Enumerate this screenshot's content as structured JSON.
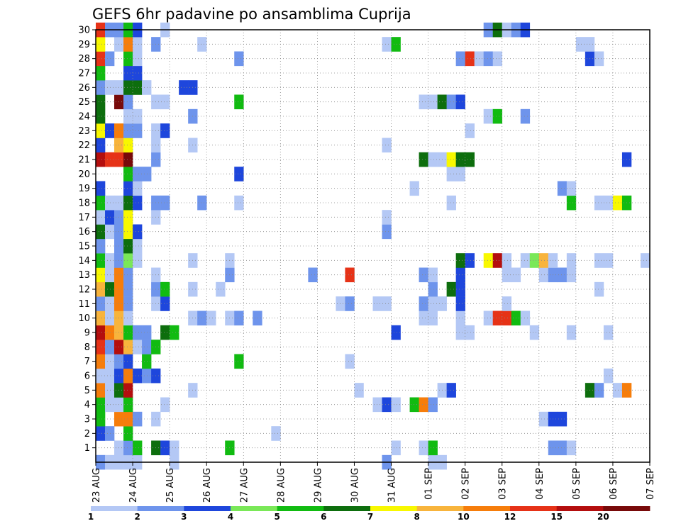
{
  "chart_data": {
    "type": "heatmap",
    "title": "GEFS 6hr padavine po ansamblima Cuprija",
    "xlabel": "",
    "ylabel": "",
    "x_ticks": [
      "23 AUG",
      "24 AUG",
      "25 AUG",
      "26 AUG",
      "27 AUG",
      "28 AUG",
      "29 AUG",
      "30 AUG",
      "31 AUG",
      "01 SEP",
      "02 SEP",
      "03 SEP",
      "04 SEP",
      "05 SEP",
      "06 SEP",
      "07 SEP"
    ],
    "x_range": [
      0,
      60
    ],
    "x_unit": "6-hour steps from 23 AUG 00Z",
    "y_range": [
      0,
      30
    ],
    "y_ticks": [
      1,
      2,
      3,
      4,
      5,
      6,
      7,
      8,
      9,
      10,
      11,
      12,
      13,
      14,
      15,
      16,
      17,
      18,
      19,
      20,
      21,
      22,
      23,
      24,
      25,
      26,
      27,
      28,
      29,
      30
    ],
    "grid": true,
    "legend": "bottom",
    "colorbar": {
      "labels": [
        "1",
        "2",
        "3",
        "4",
        "5",
        "6",
        "7",
        "8",
        "10",
        "12",
        "15",
        "20"
      ],
      "colors": [
        "#b4c8f5",
        "#6e94ec",
        "#1e46dc",
        "#7ae858",
        "#11bb11",
        "#0d6e0d",
        "#f8f800",
        "#f8b43c",
        "#f67d0b",
        "#e63217",
        "#b40e0e",
        "#780a0a"
      ]
    },
    "cells": [
      [
        0,
        0,
        2
      ],
      [
        1,
        0,
        1
      ],
      [
        2,
        0,
        1
      ],
      [
        3,
        0,
        1
      ],
      [
        4,
        0,
        1
      ],
      [
        8,
        0,
        1
      ],
      [
        31,
        0,
        2
      ],
      [
        36,
        0,
        1
      ],
      [
        37,
        0,
        1
      ],
      [
        2,
        1,
        1
      ],
      [
        3,
        1,
        2
      ],
      [
        4,
        1,
        5
      ],
      [
        6,
        1,
        6
      ],
      [
        7,
        1,
        3
      ],
      [
        8,
        1,
        1
      ],
      [
        14,
        1,
        5
      ],
      [
        32,
        1,
        1
      ],
      [
        35,
        1,
        1
      ],
      [
        36,
        1,
        5
      ],
      [
        49,
        1,
        2
      ],
      [
        50,
        1,
        2
      ],
      [
        51,
        1,
        1
      ],
      [
        0,
        2,
        3
      ],
      [
        1,
        2,
        2
      ],
      [
        3,
        2,
        5
      ],
      [
        19,
        2,
        1
      ],
      [
        0,
        3,
        5
      ],
      [
        2,
        3,
        9
      ],
      [
        3,
        3,
        9
      ],
      [
        4,
        3,
        2
      ],
      [
        6,
        3,
        1
      ],
      [
        48,
        3,
        1
      ],
      [
        49,
        3,
        3
      ],
      [
        50,
        3,
        3
      ],
      [
        0,
        4,
        5
      ],
      [
        1,
        4,
        1
      ],
      [
        2,
        4,
        1
      ],
      [
        3,
        4,
        5
      ],
      [
        7,
        4,
        1
      ],
      [
        30,
        4,
        1
      ],
      [
        31,
        4,
        3
      ],
      [
        32,
        4,
        1
      ],
      [
        34,
        4,
        5
      ],
      [
        35,
        4,
        9
      ],
      [
        36,
        4,
        2
      ],
      [
        0,
        5,
        9
      ],
      [
        1,
        5,
        1
      ],
      [
        2,
        5,
        6
      ],
      [
        3,
        5,
        11
      ],
      [
        10,
        5,
        1
      ],
      [
        28,
        5,
        1
      ],
      [
        37,
        5,
        1
      ],
      [
        38,
        5,
        3
      ],
      [
        53,
        5,
        6
      ],
      [
        54,
        5,
        2
      ],
      [
        56,
        5,
        1
      ],
      [
        57,
        5,
        9
      ],
      [
        0,
        6,
        1
      ],
      [
        1,
        6,
        1
      ],
      [
        2,
        6,
        3
      ],
      [
        3,
        6,
        9
      ],
      [
        4,
        6,
        3
      ],
      [
        5,
        6,
        2
      ],
      [
        6,
        6,
        3
      ],
      [
        55,
        6,
        1
      ],
      [
        0,
        7,
        9
      ],
      [
        1,
        7,
        1
      ],
      [
        2,
        7,
        2
      ],
      [
        3,
        7,
        3
      ],
      [
        5,
        7,
        5
      ],
      [
        15,
        7,
        5
      ],
      [
        27,
        7,
        1
      ],
      [
        0,
        8,
        10
      ],
      [
        1,
        8,
        2
      ],
      [
        2,
        8,
        11
      ],
      [
        3,
        8,
        8
      ],
      [
        4,
        8,
        1
      ],
      [
        5,
        8,
        2
      ],
      [
        6,
        8,
        5
      ],
      [
        0,
        9,
        11
      ],
      [
        1,
        9,
        9
      ],
      [
        2,
        9,
        8
      ],
      [
        3,
        9,
        5
      ],
      [
        4,
        9,
        2
      ],
      [
        5,
        9,
        2
      ],
      [
        7,
        9,
        6
      ],
      [
        8,
        9,
        5
      ],
      [
        32,
        9,
        3
      ],
      [
        39,
        9,
        1
      ],
      [
        40,
        9,
        1
      ],
      [
        47,
        9,
        1
      ],
      [
        51,
        9,
        1
      ],
      [
        55,
        9,
        1
      ],
      [
        0,
        10,
        8
      ],
      [
        1,
        10,
        1
      ],
      [
        2,
        10,
        8
      ],
      [
        3,
        10,
        1
      ],
      [
        10,
        10,
        1
      ],
      [
        11,
        10,
        2
      ],
      [
        12,
        10,
        1
      ],
      [
        14,
        10,
        1
      ],
      [
        15,
        10,
        2
      ],
      [
        17,
        10,
        2
      ],
      [
        35,
        10,
        1
      ],
      [
        36,
        10,
        1
      ],
      [
        39,
        10,
        1
      ],
      [
        42,
        10,
        1
      ],
      [
        43,
        10,
        10
      ],
      [
        44,
        10,
        10
      ],
      [
        45,
        10,
        5
      ],
      [
        46,
        10,
        1
      ],
      [
        0,
        11,
        2
      ],
      [
        1,
        11,
        1
      ],
      [
        2,
        11,
        9
      ],
      [
        3,
        11,
        2
      ],
      [
        6,
        11,
        1
      ],
      [
        7,
        11,
        3
      ],
      [
        26,
        11,
        1
      ],
      [
        27,
        11,
        2
      ],
      [
        30,
        11,
        1
      ],
      [
        31,
        11,
        1
      ],
      [
        35,
        11,
        2
      ],
      [
        36,
        11,
        1
      ],
      [
        37,
        11,
        1
      ],
      [
        39,
        11,
        3
      ],
      [
        44,
        11,
        1
      ],
      [
        0,
        12,
        8
      ],
      [
        1,
        12,
        6
      ],
      [
        2,
        12,
        9
      ],
      [
        3,
        12,
        2
      ],
      [
        6,
        12,
        2
      ],
      [
        7,
        12,
        5
      ],
      [
        10,
        12,
        1
      ],
      [
        13,
        12,
        1
      ],
      [
        36,
        12,
        2
      ],
      [
        38,
        12,
        6
      ],
      [
        39,
        12,
        3
      ],
      [
        54,
        12,
        1
      ],
      [
        0,
        13,
        7
      ],
      [
        1,
        13,
        1
      ],
      [
        2,
        13,
        9
      ],
      [
        3,
        13,
        2
      ],
      [
        6,
        13,
        1
      ],
      [
        14,
        13,
        2
      ],
      [
        23,
        13,
        2
      ],
      [
        27,
        13,
        10
      ],
      [
        35,
        13,
        2
      ],
      [
        36,
        13,
        1
      ],
      [
        39,
        13,
        3
      ],
      [
        44,
        13,
        1
      ],
      [
        45,
        13,
        1
      ],
      [
        48,
        13,
        1
      ],
      [
        49,
        13,
        2
      ],
      [
        50,
        13,
        2
      ],
      [
        51,
        13,
        1
      ],
      [
        0,
        14,
        5
      ],
      [
        1,
        14,
        1
      ],
      [
        2,
        14,
        2
      ],
      [
        3,
        14,
        4
      ],
      [
        4,
        14,
        1
      ],
      [
        10,
        14,
        1
      ],
      [
        14,
        14,
        1
      ],
      [
        39,
        14,
        6
      ],
      [
        40,
        14,
        3
      ],
      [
        42,
        14,
        7
      ],
      [
        43,
        14,
        11
      ],
      [
        44,
        14,
        1
      ],
      [
        46,
        14,
        1
      ],
      [
        47,
        14,
        4
      ],
      [
        48,
        14,
        8
      ],
      [
        49,
        14,
        1
      ],
      [
        51,
        14,
        1
      ],
      [
        54,
        14,
        1
      ],
      [
        55,
        14,
        1
      ],
      [
        59,
        14,
        1
      ],
      [
        0,
        15,
        2
      ],
      [
        2,
        15,
        2
      ],
      [
        3,
        15,
        6
      ],
      [
        4,
        15,
        1
      ],
      [
        0,
        16,
        6
      ],
      [
        1,
        16,
        1
      ],
      [
        2,
        16,
        2
      ],
      [
        3,
        16,
        7
      ],
      [
        4,
        16,
        3
      ],
      [
        31,
        16,
        2
      ],
      [
        0,
        17,
        1
      ],
      [
        1,
        17,
        3
      ],
      [
        2,
        17,
        2
      ],
      [
        3,
        17,
        7
      ],
      [
        6,
        17,
        1
      ],
      [
        31,
        17,
        1
      ],
      [
        0,
        18,
        5
      ],
      [
        1,
        18,
        1
      ],
      [
        2,
        18,
        1
      ],
      [
        3,
        18,
        6
      ],
      [
        4,
        18,
        3
      ],
      [
        6,
        18,
        2
      ],
      [
        7,
        18,
        2
      ],
      [
        11,
        18,
        2
      ],
      [
        15,
        18,
        1
      ],
      [
        38,
        18,
        1
      ],
      [
        51,
        18,
        5
      ],
      [
        54,
        18,
        1
      ],
      [
        55,
        18,
        1
      ],
      [
        56,
        18,
        7
      ],
      [
        57,
        18,
        5
      ],
      [
        0,
        19,
        3
      ],
      [
        3,
        19,
        3
      ],
      [
        4,
        19,
        1
      ],
      [
        34,
        19,
        1
      ],
      [
        50,
        19,
        2
      ],
      [
        51,
        19,
        1
      ],
      [
        3,
        20,
        5
      ],
      [
        4,
        20,
        2
      ],
      [
        5,
        20,
        2
      ],
      [
        15,
        20,
        3
      ],
      [
        38,
        20,
        1
      ],
      [
        39,
        20,
        1
      ],
      [
        0,
        21,
        11
      ],
      [
        1,
        21,
        10
      ],
      [
        2,
        21,
        10
      ],
      [
        3,
        21,
        12
      ],
      [
        6,
        21,
        2
      ],
      [
        35,
        21,
        6
      ],
      [
        36,
        21,
        1
      ],
      [
        37,
        21,
        1
      ],
      [
        38,
        21,
        7
      ],
      [
        39,
        21,
        6
      ],
      [
        40,
        21,
        6
      ],
      [
        57,
        21,
        3
      ],
      [
        0,
        22,
        3
      ],
      [
        2,
        22,
        8
      ],
      [
        3,
        22,
        7
      ],
      [
        6,
        22,
        1
      ],
      [
        10,
        22,
        1
      ],
      [
        31,
        22,
        1
      ],
      [
        0,
        23,
        7
      ],
      [
        1,
        23,
        3
      ],
      [
        2,
        23,
        9
      ],
      [
        3,
        23,
        2
      ],
      [
        4,
        23,
        2
      ],
      [
        6,
        23,
        1
      ],
      [
        7,
        23,
        3
      ],
      [
        40,
        23,
        1
      ],
      [
        0,
        24,
        6
      ],
      [
        3,
        24,
        1
      ],
      [
        4,
        24,
        1
      ],
      [
        10,
        24,
        2
      ],
      [
        42,
        24,
        1
      ],
      [
        43,
        24,
        5
      ],
      [
        46,
        24,
        2
      ],
      [
        0,
        25,
        6
      ],
      [
        2,
        25,
        12
      ],
      [
        3,
        25,
        2
      ],
      [
        6,
        25,
        1
      ],
      [
        7,
        25,
        1
      ],
      [
        15,
        25,
        5
      ],
      [
        35,
        25,
        1
      ],
      [
        36,
        25,
        1
      ],
      [
        37,
        25,
        6
      ],
      [
        38,
        25,
        2
      ],
      [
        39,
        25,
        3
      ],
      [
        0,
        26,
        2
      ],
      [
        1,
        26,
        1
      ],
      [
        2,
        26,
        1
      ],
      [
        3,
        26,
        6
      ],
      [
        4,
        26,
        6
      ],
      [
        5,
        26,
        1
      ],
      [
        9,
        26,
        3
      ],
      [
        10,
        26,
        3
      ],
      [
        0,
        27,
        5
      ],
      [
        3,
        27,
        3
      ],
      [
        4,
        27,
        3
      ],
      [
        0,
        28,
        10
      ],
      [
        1,
        28,
        2
      ],
      [
        3,
        28,
        5
      ],
      [
        4,
        28,
        1
      ],
      [
        15,
        28,
        2
      ],
      [
        39,
        28,
        2
      ],
      [
        40,
        28,
        10
      ],
      [
        41,
        28,
        1
      ],
      [
        42,
        28,
        2
      ],
      [
        43,
        28,
        1
      ],
      [
        53,
        28,
        3
      ],
      [
        54,
        28,
        1
      ],
      [
        0,
        29,
        7
      ],
      [
        2,
        29,
        1
      ],
      [
        3,
        29,
        9
      ],
      [
        4,
        29,
        1
      ],
      [
        6,
        29,
        2
      ],
      [
        11,
        29,
        1
      ],
      [
        31,
        29,
        1
      ],
      [
        32,
        29,
        5
      ],
      [
        52,
        29,
        1
      ],
      [
        53,
        29,
        1
      ],
      [
        0,
        30,
        10
      ],
      [
        1,
        30,
        2
      ],
      [
        2,
        30,
        2
      ],
      [
        3,
        30,
        5
      ],
      [
        4,
        30,
        3
      ],
      [
        7,
        30,
        1
      ],
      [
        42,
        30,
        2
      ],
      [
        43,
        30,
        6
      ],
      [
        44,
        30,
        1
      ],
      [
        45,
        30,
        2
      ],
      [
        46,
        30,
        3
      ]
    ]
  }
}
